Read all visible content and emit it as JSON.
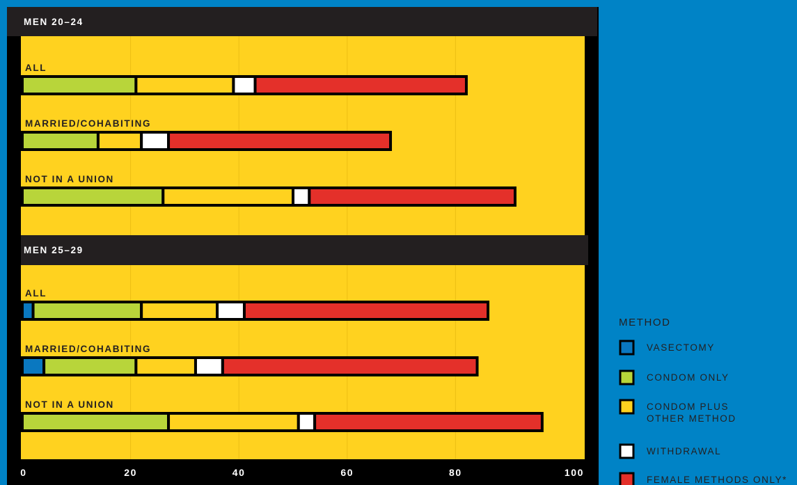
{
  "chart_data": {
    "type": "bar",
    "stacked": true,
    "orientation": "horizontal",
    "xlim": [
      0,
      100
    ],
    "xticks": [
      "0",
      "20",
      "40",
      "60",
      "80",
      "100"
    ],
    "grid": true,
    "legend_placement": "bottom-right",
    "series_names": [
      "VASECTOMY",
      "CONDOM ONLY",
      "CONDOM PLUS OTHER METHOD",
      "WITHDRAWAL",
      "FEMALE METHODS ONLY*"
    ],
    "series_colors": [
      "#0a78c0",
      "#b8d53a",
      "#ffd21f",
      "#ffffff",
      "#e4302a"
    ],
    "panels": [
      {
        "title": "MEN 20–24",
        "bars": [
          {
            "label": "ALL",
            "values": [
              0,
              21,
              18,
              4,
              39
            ]
          },
          {
            "label": "MARRIED/COHABITING",
            "values": [
              0,
              14,
              8,
              5,
              41
            ]
          },
          {
            "label": "NOT IN A UNION",
            "values": [
              0,
              26,
              24,
              3,
              38
            ]
          }
        ]
      },
      {
        "title": "MEN 25–29",
        "bars": [
          {
            "label": "ALL",
            "values": [
              2,
              20,
              14,
              5,
              45
            ]
          },
          {
            "label": "MARRIED/COHABITING",
            "values": [
              4,
              17,
              11,
              5,
              47
            ]
          },
          {
            "label": "NOT IN A UNION",
            "values": [
              0,
              27,
              24,
              3,
              42
            ]
          }
        ]
      }
    ]
  },
  "legend": {
    "title": "METHOD",
    "items": [
      {
        "lines": [
          "VASECTOMY"
        ],
        "color": "#0a78c0"
      },
      {
        "lines": [
          "CONDOM ONLY"
        ],
        "color": "#b8d53a"
      },
      {
        "lines": [
          "CONDOM PLUS",
          "OTHER METHOD"
        ],
        "color": "#ffd21f"
      },
      {
        "lines": [
          "WITHDRAWAL"
        ],
        "color": "#ffffff"
      },
      {
        "lines": [
          "FEMALE METHODS ONLY*"
        ],
        "color": "#e4302a"
      }
    ]
  },
  "colors": {
    "background": "#0083c6",
    "panel": "#ffd21f",
    "header": "#231f20",
    "frame": "#000000"
  }
}
